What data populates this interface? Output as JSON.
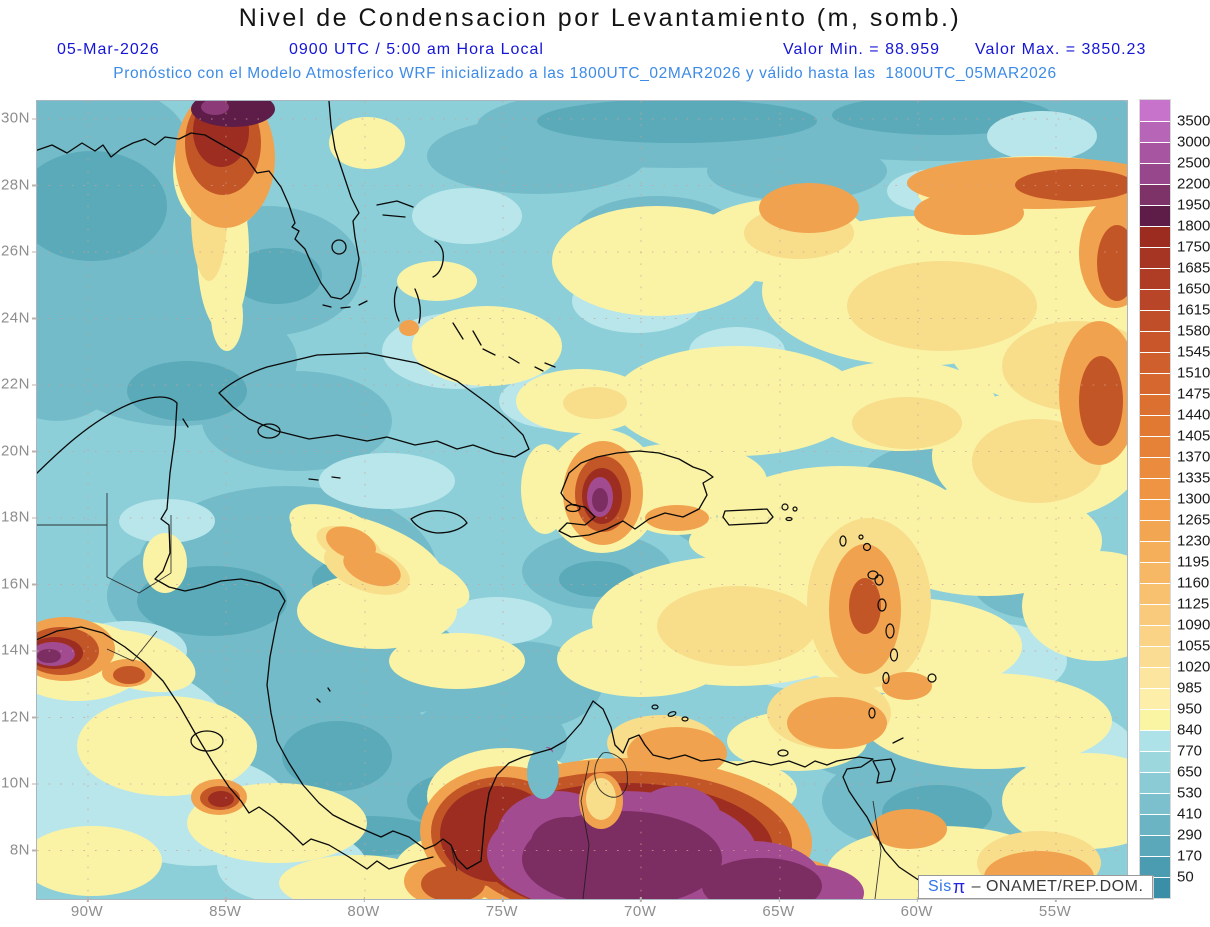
{
  "header": {
    "title": "Nivel de Condensacion por Levantamiento (m, somb.)",
    "date": "05-Mar-2026",
    "time": "0900 UTC / 5:00 am Hora Local",
    "valor_min": "Valor Min. = 88.959",
    "valor_max": "Valor Max. = 3850.23",
    "forecast": "Pronóstico con el Modelo Atmosferico WRF inicializado a las 1800UTC_02MAR2026 y válido hasta las  1800UTC_05MAR2026"
  },
  "axes": {
    "lat_ticks": [
      "30N",
      "28N",
      "26N",
      "24N",
      "22N",
      "20N",
      "18N",
      "16N",
      "14N",
      "12N",
      "10N",
      "8N"
    ],
    "lon_ticks": [
      "90W",
      "85W",
      "80W",
      "75W",
      "70W",
      "65W",
      "60W",
      "55W"
    ]
  },
  "colorbar": {
    "labels": [
      "3500",
      "3000",
      "2500",
      "2200",
      "1950",
      "1800",
      "1750",
      "1685",
      "1650",
      "1615",
      "1580",
      "1545",
      "1510",
      "1475",
      "1440",
      "1405",
      "1370",
      "1335",
      "1300",
      "1265",
      "1230",
      "1195",
      "1160",
      "1125",
      "1090",
      "1055",
      "1020",
      "985",
      "950",
      "840",
      "770",
      "650",
      "530",
      "410",
      "290",
      "170",
      "50"
    ],
    "colors": [
      "#c873cb",
      "#b765b6",
      "#a755a0",
      "#97478c",
      "#7d3268",
      "#5e1d48",
      "#9c2c1f",
      "#a63524",
      "#af3d26",
      "#b84527",
      "#c04e29",
      "#c8562a",
      "#cf5f2c",
      "#d6672e",
      "#dc7030",
      "#e17933",
      "#e68238",
      "#ea8b3d",
      "#ee9443",
      "#f19d4a",
      "#f3a652",
      "#f5af5b",
      "#f7b865",
      "#f8c170",
      "#f9ca7b",
      "#fad387",
      "#fbdc93",
      "#fce59f",
      "#fdeeaa",
      "#f9f5a3",
      "#ace2e8",
      "#9cd7de",
      "#8bcbd5",
      "#7bc0cc",
      "#6bb4c3",
      "#5ba8ba",
      "#4b9bb1",
      "#3b8ea7"
    ]
  },
  "attribution": {
    "brand": "Sis",
    "symbol": "π",
    "rest": "– ONAMET/REP.DOM."
  },
  "chart_data": {
    "type": "heatmap",
    "title": "Nivel de Condensacion por Levantamiento (m, somb.)",
    "variable": "Nivel de Condensacion por Levantamiento",
    "units": "m",
    "model": "WRF",
    "valid_date": "05-Mar-2026",
    "valid_time": "0900 UTC / 5:00 am Hora Local",
    "value_min": 88.959,
    "value_max": 3850.23,
    "initialized": "1800UTC_02MAR2026",
    "valid_until": "1800UTC_05MAR2026",
    "lat_range": [
      "8N",
      "30N"
    ],
    "lon_range": [
      "90W",
      "55W"
    ],
    "contour_levels": [
      50,
      170,
      290,
      410,
      530,
      650,
      770,
      840,
      950,
      985,
      1020,
      1055,
      1090,
      1125,
      1160,
      1195,
      1230,
      1265,
      1300,
      1335,
      1370,
      1405,
      1440,
      1475,
      1510,
      1545,
      1580,
      1615,
      1650,
      1685,
      1750,
      1800,
      1950,
      2200,
      2500,
      3000,
      3500
    ],
    "legend_position": "right",
    "grid": true
  }
}
